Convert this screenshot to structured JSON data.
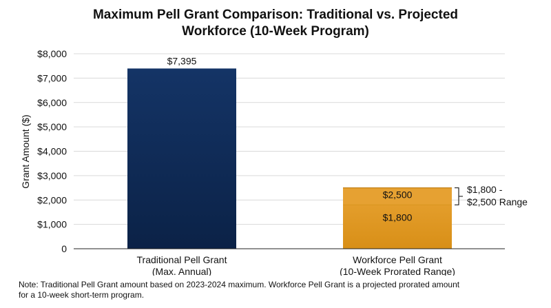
{
  "chart_title": {
    "line1": "Maximum Pell Grant Comparison: Traditional vs. Projected",
    "line2": "Workforce (10-Week Program)"
  },
  "colors": {
    "navy": "#0f2a55",
    "orange": "#e39a22",
    "grid": "#d9d9d9",
    "axis": "#222222"
  },
  "chart_data": {
    "type": "bar",
    "title": "Maximum Pell Grant Comparison: Traditional vs. Projected Workforce (10-Week Program)",
    "ylabel": "Grant Amount ($)",
    "ylim": [
      0,
      8000
    ],
    "yticks": [
      0,
      1000,
      2000,
      3000,
      4000,
      5000,
      6000,
      7000,
      8000
    ],
    "ytick_labels": [
      "0",
      "$1,000",
      "$2,000",
      "$3,000",
      "$4,000",
      "$5,000",
      "$6,000",
      "$7,000",
      "$8,000"
    ],
    "grid": true,
    "bars": [
      {
        "category": [
          "Traditional Pell Grant",
          "(Max. Annual)"
        ],
        "value": 7395,
        "label": "$7,395"
      },
      {
        "category": [
          "Workforce Pell Grant",
          "(10-Week Prorated Range)"
        ],
        "range": [
          1800,
          2500
        ],
        "low_label": "$1,800",
        "high_label": "$2,500",
        "bracket_label": [
          "$1,800 -",
          "$2,500 Range"
        ]
      }
    ]
  },
  "note": {
    "line1": "Note: Traditional Pell Grant amount based on 2023-2024 maximum. Workforce Pell Grant is a projected prorated amount",
    "line2": "for a 10-week short-term program."
  }
}
